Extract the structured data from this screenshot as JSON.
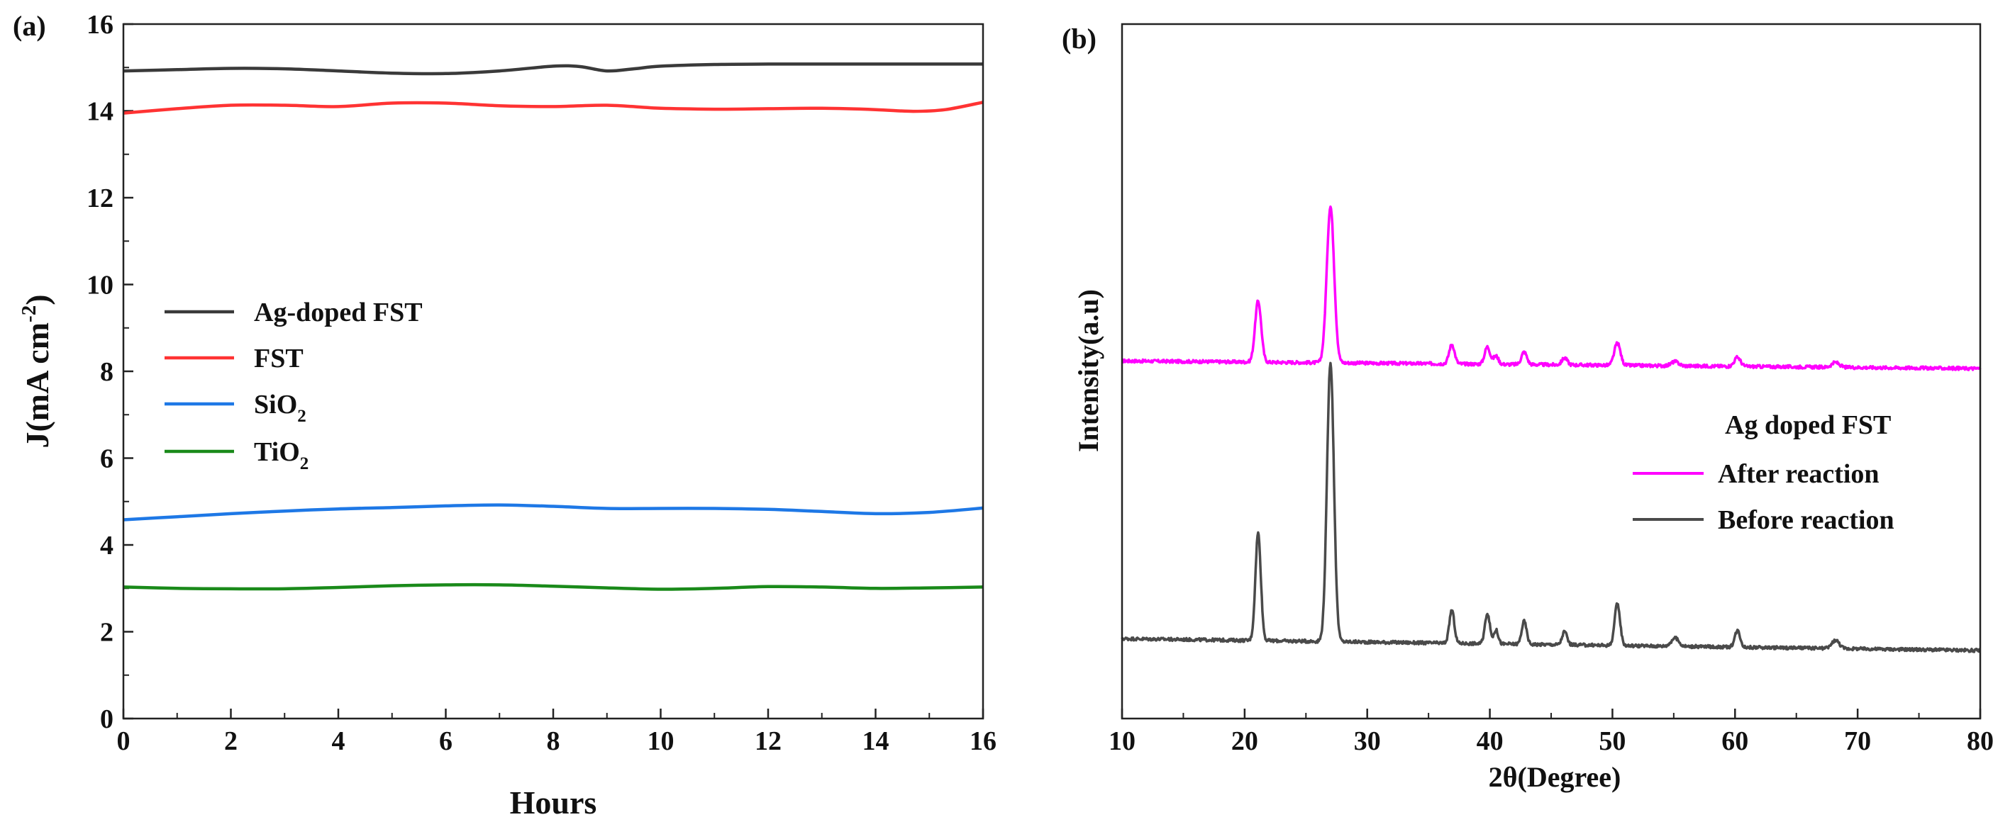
{
  "chart_data": [
    {
      "type": "line",
      "panel_label": "(a)",
      "title": "",
      "xlabel": "Hours",
      "ylabel": {
        "base": "J(mA cm",
        "sup": "-2",
        "close": ")"
      },
      "xlim": [
        0,
        16
      ],
      "ylim": [
        0,
        16
      ],
      "xticks": [
        "0",
        "2",
        "4",
        "6",
        "8",
        "10",
        "12",
        "14",
        "16"
      ],
      "yticks": [
        "0",
        "2",
        "4",
        "6",
        "8",
        "10",
        "12",
        "14",
        "16"
      ],
      "legend": {
        "placement": "center-left"
      },
      "series": [
        {
          "name": "Ag-doped FST",
          "name_base": "Ag-doped FST",
          "name_sub": "",
          "color": "#3a3a3a",
          "x": [
            0,
            1,
            2,
            3,
            4,
            5,
            6,
            7,
            8,
            8.5,
            9,
            9.5,
            10,
            11,
            12,
            13,
            14,
            15,
            16
          ],
          "y": [
            14.92,
            14.95,
            14.98,
            14.97,
            14.92,
            14.87,
            14.86,
            14.92,
            15.03,
            15.02,
            14.92,
            14.97,
            15.03,
            15.07,
            15.08,
            15.08,
            15.08,
            15.08,
            15.08
          ]
        },
        {
          "name": "FST",
          "name_base": "FST",
          "name_sub": "",
          "color": "#ff3333",
          "x": [
            0,
            1,
            2,
            3,
            4,
            5,
            6,
            7,
            8,
            9,
            10,
            11,
            12,
            13,
            14,
            14.7,
            15.3,
            16
          ],
          "y": [
            13.95,
            14.05,
            14.13,
            14.13,
            14.1,
            14.18,
            14.18,
            14.12,
            14.1,
            14.13,
            14.06,
            14.04,
            14.05,
            14.06,
            14.03,
            13.99,
            14.03,
            14.2
          ]
        },
        {
          "name": "SiO2",
          "name_base": "SiO",
          "name_sub": "2",
          "color": "#1e78e6",
          "x": [
            0,
            1,
            2,
            3,
            4,
            5,
            6,
            7,
            8,
            9,
            10,
            11,
            12,
            13,
            14,
            15,
            16
          ],
          "y": [
            4.58,
            4.65,
            4.72,
            4.78,
            4.83,
            4.86,
            4.9,
            4.92,
            4.89,
            4.84,
            4.84,
            4.84,
            4.82,
            4.77,
            4.72,
            4.75,
            4.85
          ]
        },
        {
          "name": "TiO2",
          "name_base": "TiO",
          "name_sub": "2",
          "color": "#1a8a1a",
          "x": [
            0,
            1,
            2,
            3,
            4,
            5,
            6,
            7,
            8,
            9,
            10,
            11,
            12,
            13,
            14,
            15,
            16
          ],
          "y": [
            3.03,
            3.0,
            2.99,
            2.99,
            3.02,
            3.06,
            3.08,
            3.08,
            3.05,
            3.01,
            2.98,
            3.0,
            3.04,
            3.03,
            3.0,
            3.01,
            3.03
          ]
        }
      ]
    },
    {
      "type": "line",
      "panel_label": "(b)",
      "title": "",
      "xlabel": "2θ(Degree)",
      "ylabel": "Intensity(a.u)",
      "xlim": [
        10,
        80
      ],
      "ylim": [
        0,
        100
      ],
      "xticks": [
        "10",
        "20",
        "30",
        "40",
        "50",
        "60",
        "70",
        "80"
      ],
      "yticks": [],
      "legend": {
        "placement": "right",
        "title": "Ag doped FST"
      },
      "series": [
        {
          "name": "After reaction",
          "color": "#ff00ff",
          "baseline_start": 51.5,
          "baseline_end": 50.4,
          "peaks": [
            [
              21.1,
              8.8,
              0.25
            ],
            [
              27.0,
              22.5,
              0.3
            ],
            [
              36.9,
              2.8,
              0.22
            ],
            [
              39.8,
              2.5,
              0.22
            ],
            [
              40.5,
              1.2,
              0.2
            ],
            [
              42.8,
              1.8,
              0.22
            ],
            [
              46.1,
              1.0,
              0.22
            ],
            [
              50.4,
              3.2,
              0.25
            ],
            [
              55.1,
              0.6,
              0.3
            ],
            [
              60.2,
              1.3,
              0.25
            ],
            [
              68.2,
              0.7,
              0.3
            ]
          ]
        },
        {
          "name": "Before reaction",
          "color": "#4a4a4a",
          "baseline_start": 11.5,
          "baseline_end": 9.8,
          "peaks": [
            [
              21.1,
              15.5,
              0.22
            ],
            [
              27.0,
              40.2,
              0.28
            ],
            [
              36.9,
              4.8,
              0.2
            ],
            [
              39.8,
              4.4,
              0.2
            ],
            [
              40.5,
              2.0,
              0.18
            ],
            [
              42.8,
              3.3,
              0.2
            ],
            [
              46.1,
              1.9,
              0.2
            ],
            [
              50.4,
              6.0,
              0.22
            ],
            [
              55.1,
              1.2,
              0.3
            ],
            [
              60.2,
              2.4,
              0.22
            ],
            [
              68.2,
              1.2,
              0.3
            ]
          ]
        }
      ]
    }
  ]
}
